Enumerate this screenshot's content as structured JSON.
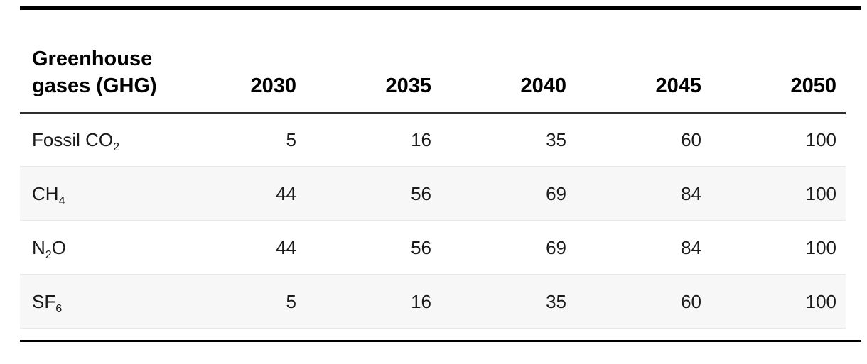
{
  "meta": {
    "top_rule_color": "#000000",
    "bottom_rule_color": "#000000",
    "header_divider_color": "#2e2e2e",
    "row_stripe_color": "#f7f7f7",
    "row_border_color": "#e8e8e8",
    "text_color": "#1a1a1a"
  },
  "table": {
    "header": {
      "gas_label_line1": "Greenhouse",
      "gas_label_line2": "gases (GHG)",
      "years": [
        "2030",
        "2035",
        "2040",
        "2045",
        "2050"
      ]
    },
    "rows": [
      {
        "gas_base": "Fossil CO",
        "gas_sub": "2",
        "gas_after": "",
        "values": [
          "5",
          "16",
          "35",
          "60",
          "100"
        ]
      },
      {
        "gas_base": "CH",
        "gas_sub": "4",
        "gas_after": "",
        "values": [
          "44",
          "56",
          "69",
          "84",
          "100"
        ]
      },
      {
        "gas_base": "N",
        "gas_sub": "2",
        "gas_after": "O",
        "values": [
          "44",
          "56",
          "69",
          "84",
          "100"
        ]
      },
      {
        "gas_base": "SF",
        "gas_sub": "6",
        "gas_after": "",
        "values": [
          "5",
          "16",
          "35",
          "60",
          "100"
        ]
      }
    ]
  },
  "chart_data": {
    "type": "table",
    "row_header_label": "Greenhouse gases (GHG)",
    "categories": [
      "2030",
      "2035",
      "2040",
      "2045",
      "2050"
    ],
    "series": [
      {
        "name": "Fossil CO2",
        "values": [
          5,
          16,
          35,
          60,
          100
        ]
      },
      {
        "name": "CH4",
        "values": [
          44,
          56,
          69,
          84,
          100
        ]
      },
      {
        "name": "N2O",
        "values": [
          44,
          56,
          69,
          84,
          100
        ]
      },
      {
        "name": "SF6",
        "values": [
          5,
          16,
          35,
          60,
          100
        ]
      }
    ]
  }
}
